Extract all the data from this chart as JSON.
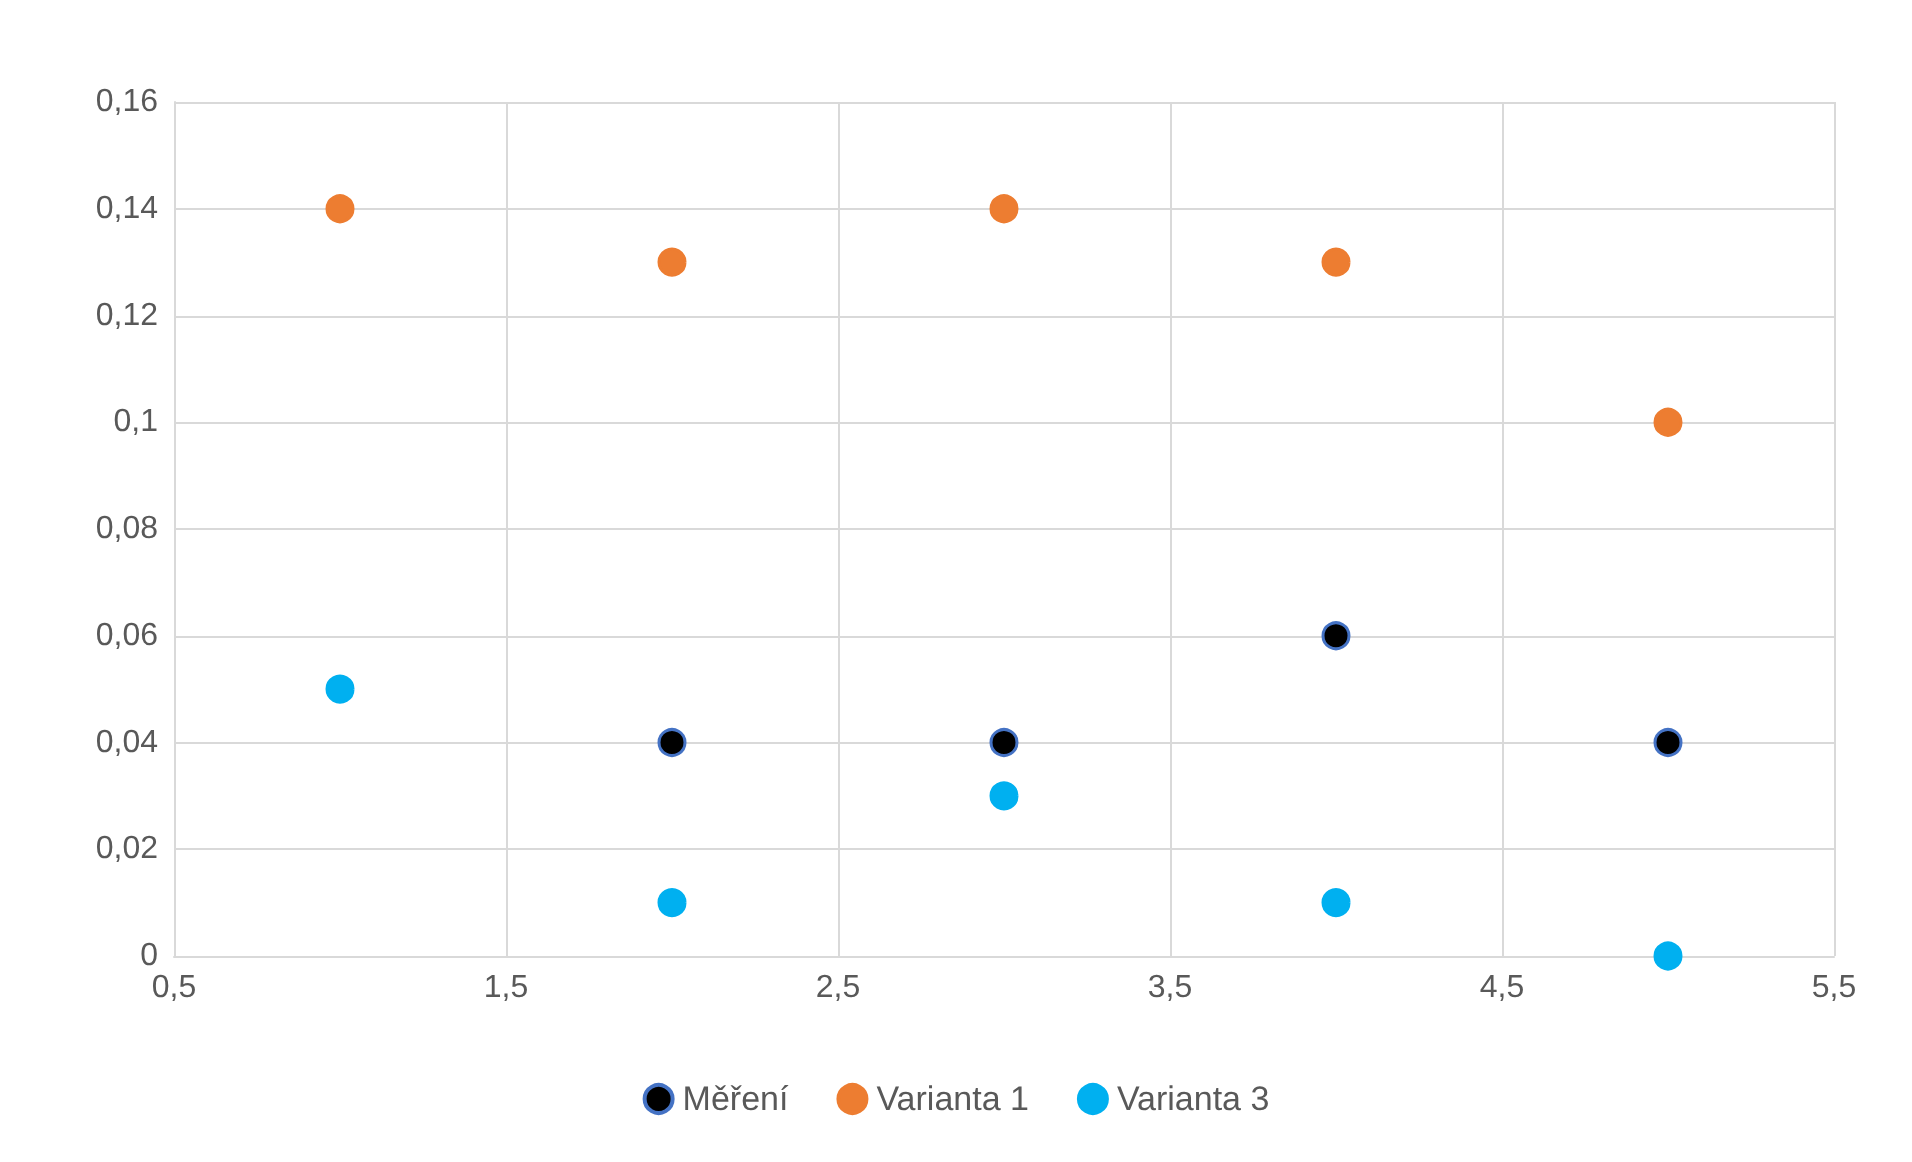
{
  "chart_data": {
    "type": "scatter",
    "x": [
      1,
      2,
      3,
      4,
      5
    ],
    "series": [
      {
        "name": "Měření",
        "color": "#000000",
        "values": [
          null,
          0.04,
          0.04,
          0.06,
          0.04
        ]
      },
      {
        "name": "Varianta 1",
        "color": "#ed7d31",
        "values": [
          0.14,
          0.13,
          0.14,
          0.13,
          0.1
        ]
      },
      {
        "name": "Varianta 3",
        "color": "#00b0f0",
        "values": [
          0.05,
          0.01,
          0.03,
          0.01,
          0
        ]
      }
    ],
    "xlim": [
      0.5,
      5.5
    ],
    "xticks": [
      {
        "value": 0.5,
        "label": "0,5"
      },
      {
        "value": 1.5,
        "label": "1,5"
      },
      {
        "value": 2.5,
        "label": "2,5"
      },
      {
        "value": 3.5,
        "label": "3,5"
      },
      {
        "value": 4.5,
        "label": "4,5"
      },
      {
        "value": 5.5,
        "label": "5,5"
      }
    ],
    "ylim": [
      0,
      0.16
    ],
    "yticks": [
      0,
      {
        "value": 0.02,
        "label": "0,02"
      },
      {
        "value": 0.04,
        "label": "0,04"
      },
      {
        "value": 0.06,
        "label": "0,06"
      },
      {
        "value": 0.08,
        "label": "0,08"
      },
      {
        "value": 0.1,
        "label": "0,1"
      },
      {
        "value": 0.12,
        "label": "0,12"
      },
      {
        "value": 0.14,
        "label": "0,14"
      },
      {
        "value": 0.16,
        "label": "0,16"
      }
    ],
    "grid": true,
    "legend": "bottom",
    "marker": "circle"
  }
}
